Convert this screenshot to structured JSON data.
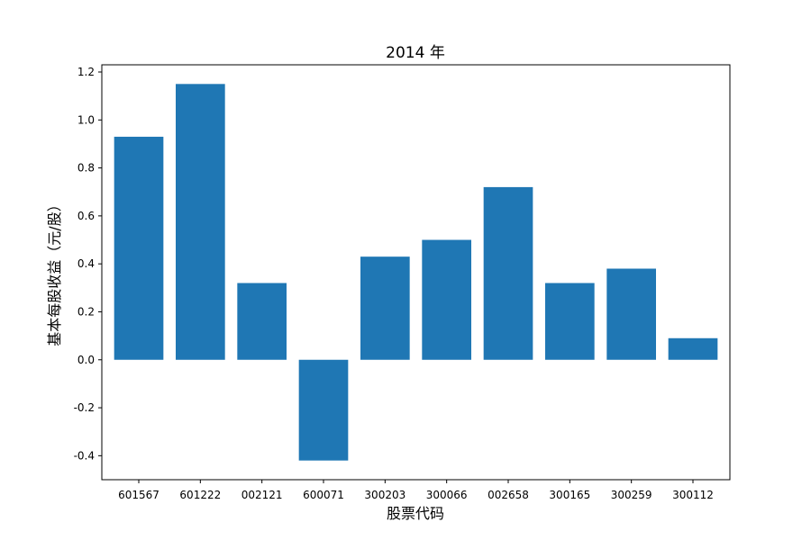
{
  "chart_data": {
    "type": "bar",
    "title": "2014 年",
    "xlabel": "股票代码",
    "ylabel": "基本每股收益（元/股）",
    "categories": [
      "601567",
      "601222",
      "002121",
      "600071",
      "300203",
      "300066",
      "002658",
      "300165",
      "300259",
      "300112"
    ],
    "values": [
      0.93,
      1.15,
      0.32,
      -0.42,
      0.43,
      0.5,
      0.72,
      0.32,
      0.38,
      0.09
    ],
    "ylim": [
      -0.5,
      1.23
    ],
    "yticks": [
      -0.4,
      -0.2,
      0.0,
      0.2,
      0.4,
      0.6,
      0.8,
      1.0,
      1.2
    ],
    "ytick_labels": [
      "-0.4",
      "-0.2",
      "0.0",
      "0.2",
      "0.4",
      "0.6",
      "0.8",
      "1.0",
      "1.2"
    ],
    "grid": false,
    "bar_color": "#1f77b4"
  }
}
